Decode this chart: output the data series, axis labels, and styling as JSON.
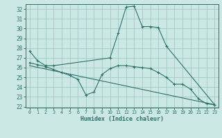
{
  "xlabel": "Humidex (Indice chaleur)",
  "bg_color": "#cce8e4",
  "line_color": "#2a7068",
  "grid_color": "#a0c8c4",
  "ylim": [
    21.9,
    32.5
  ],
  "xlim": [
    -0.5,
    23.5
  ],
  "yticks": [
    22,
    23,
    24,
    25,
    26,
    27,
    28,
    29,
    30,
    31,
    32
  ],
  "xticks": [
    0,
    1,
    2,
    3,
    4,
    5,
    6,
    7,
    8,
    9,
    10,
    11,
    12,
    13,
    14,
    15,
    16,
    17,
    18,
    19,
    20,
    21,
    22,
    23
  ],
  "line1_x": [
    0,
    1,
    2,
    3,
    10,
    11,
    12,
    13,
    14,
    15,
    16,
    17,
    23
  ],
  "line1_y": [
    27.7,
    26.7,
    26.2,
    26.2,
    27.0,
    29.5,
    32.2,
    32.3,
    30.2,
    30.2,
    30.1,
    28.2,
    22.2
  ],
  "line2_x": [
    0,
    1,
    2,
    3,
    4,
    5,
    6,
    7,
    8,
    9,
    10,
    11,
    12,
    13,
    14,
    15,
    16,
    17,
    18,
    19,
    20,
    21,
    22,
    23
  ],
  "line2_y": [
    26.5,
    26.3,
    26.1,
    25.8,
    25.5,
    25.2,
    24.8,
    23.2,
    23.5,
    25.3,
    25.9,
    26.2,
    26.2,
    26.1,
    26.0,
    25.9,
    25.5,
    25.0,
    24.3,
    24.3,
    23.8,
    22.8,
    22.3,
    22.2
  ],
  "line3_x": [
    0,
    23
  ],
  "line3_y": [
    26.2,
    22.2
  ],
  "ytick_fontsize": 5.5,
  "xtick_fontsize": 4.8,
  "xlabel_fontsize": 6.0,
  "lw": 0.8,
  "ms": 2.5
}
